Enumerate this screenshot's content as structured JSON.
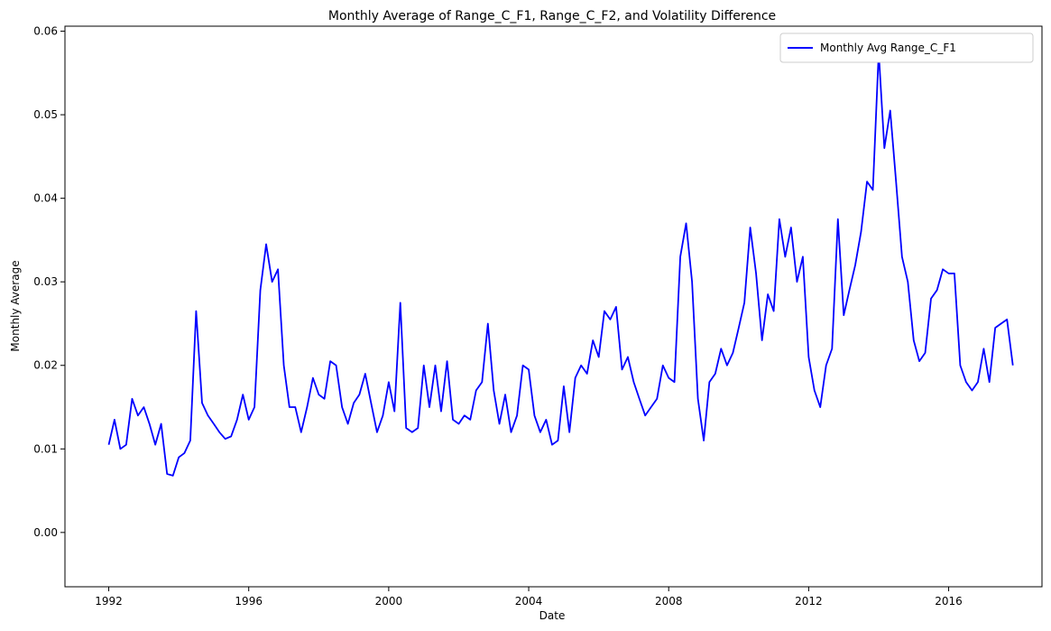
{
  "chart_data": {
    "type": "line",
    "title": "Monthly Average of Range_C_F1, Range_C_F2, and Volatility Difference",
    "xlabel": "Date",
    "ylabel": "Monthly Average",
    "xlim": [
      "1990-10-01",
      "2018-09-01"
    ],
    "ylim": [
      -0.0065,
      0.0606
    ],
    "x_ticks": [
      {
        "value": "1992-01-01",
        "label": "1992"
      },
      {
        "value": "1996-01-01",
        "label": "1996"
      },
      {
        "value": "2000-01-01",
        "label": "2000"
      },
      {
        "value": "2004-01-01",
        "label": "2004"
      },
      {
        "value": "2008-01-01",
        "label": "2008"
      },
      {
        "value": "2012-01-01",
        "label": "2012"
      },
      {
        "value": "2016-01-01",
        "label": "2016"
      }
    ],
    "y_ticks": [
      {
        "value": 0.0,
        "label": "0.00"
      },
      {
        "value": 0.01,
        "label": "0.01"
      },
      {
        "value": 0.02,
        "label": "0.02"
      },
      {
        "value": 0.03,
        "label": "0.03"
      },
      {
        "value": 0.04,
        "label": "0.04"
      },
      {
        "value": 0.05,
        "label": "0.05"
      },
      {
        "value": 0.06,
        "label": "0.06"
      }
    ],
    "grid": false,
    "legend_position": "top-right",
    "series": [
      {
        "name": "Monthly Avg Range_C_F1",
        "color": "#0000ff",
        "points": [
          [
            "1992-01",
            0.0105
          ],
          [
            "1992-03",
            0.0135
          ],
          [
            "1992-05",
            0.01
          ],
          [
            "1992-07",
            0.0105
          ],
          [
            "1992-09",
            0.016
          ],
          [
            "1992-11",
            0.014
          ],
          [
            "1993-01",
            0.015
          ],
          [
            "1993-03",
            0.013
          ],
          [
            "1993-05",
            0.0105
          ],
          [
            "1993-07",
            0.013
          ],
          [
            "1993-09",
            0.007
          ],
          [
            "1993-11",
            0.0068
          ],
          [
            "1994-01",
            0.009
          ],
          [
            "1994-03",
            0.0095
          ],
          [
            "1994-05",
            0.011
          ],
          [
            "1994-07",
            0.0265
          ],
          [
            "1994-09",
            0.0155
          ],
          [
            "1994-11",
            0.014
          ],
          [
            "1995-01",
            0.013
          ],
          [
            "1995-03",
            0.012
          ],
          [
            "1995-05",
            0.0112
          ],
          [
            "1995-07",
            0.0115
          ],
          [
            "1995-09",
            0.0135
          ],
          [
            "1995-11",
            0.0165
          ],
          [
            "1996-01",
            0.0135
          ],
          [
            "1996-03",
            0.015
          ],
          [
            "1996-05",
            0.029
          ],
          [
            "1996-07",
            0.0345
          ],
          [
            "1996-09",
            0.03
          ],
          [
            "1996-11",
            0.0315
          ],
          [
            "1997-01",
            0.02
          ],
          [
            "1997-03",
            0.015
          ],
          [
            "1997-05",
            0.015
          ],
          [
            "1997-07",
            0.012
          ],
          [
            "1997-09",
            0.015
          ],
          [
            "1997-11",
            0.0185
          ],
          [
            "1998-01",
            0.0165
          ],
          [
            "1998-03",
            0.016
          ],
          [
            "1998-05",
            0.0205
          ],
          [
            "1998-07",
            0.02
          ],
          [
            "1998-09",
            0.015
          ],
          [
            "1998-11",
            0.013
          ],
          [
            "1999-01",
            0.0155
          ],
          [
            "1999-03",
            0.0165
          ],
          [
            "1999-05",
            0.019
          ],
          [
            "1999-07",
            0.0155
          ],
          [
            "1999-09",
            0.012
          ],
          [
            "1999-11",
            0.014
          ],
          [
            "2000-01",
            0.018
          ],
          [
            "2000-03",
            0.0145
          ],
          [
            "2000-05",
            0.0275
          ],
          [
            "2000-07",
            0.0125
          ],
          [
            "2000-09",
            0.012
          ],
          [
            "2000-11",
            0.0125
          ],
          [
            "2001-01",
            0.02
          ],
          [
            "2001-03",
            0.015
          ],
          [
            "2001-05",
            0.02
          ],
          [
            "2001-07",
            0.0145
          ],
          [
            "2001-09",
            0.0205
          ],
          [
            "2001-11",
            0.0135
          ],
          [
            "2002-01",
            0.013
          ],
          [
            "2002-03",
            0.014
          ],
          [
            "2002-05",
            0.0135
          ],
          [
            "2002-07",
            0.017
          ],
          [
            "2002-09",
            0.018
          ],
          [
            "2002-11",
            0.025
          ],
          [
            "2003-01",
            0.017
          ],
          [
            "2003-03",
            0.013
          ],
          [
            "2003-05",
            0.0165
          ],
          [
            "2003-07",
            0.012
          ],
          [
            "2003-09",
            0.014
          ],
          [
            "2003-11",
            0.02
          ],
          [
            "2004-01",
            0.0195
          ],
          [
            "2004-03",
            0.014
          ],
          [
            "2004-05",
            0.012
          ],
          [
            "2004-07",
            0.0135
          ],
          [
            "2004-09",
            0.0105
          ],
          [
            "2004-11",
            0.011
          ],
          [
            "2005-01",
            0.0175
          ],
          [
            "2005-03",
            0.012
          ],
          [
            "2005-05",
            0.0185
          ],
          [
            "2005-07",
            0.02
          ],
          [
            "2005-09",
            0.019
          ],
          [
            "2005-11",
            0.023
          ],
          [
            "2006-01",
            0.021
          ],
          [
            "2006-03",
            0.0265
          ],
          [
            "2006-05",
            0.0255
          ],
          [
            "2006-07",
            0.027
          ],
          [
            "2006-09",
            0.0195
          ],
          [
            "2006-11",
            0.021
          ],
          [
            "2007-01",
            0.018
          ],
          [
            "2007-03",
            0.016
          ],
          [
            "2007-05",
            0.014
          ],
          [
            "2007-07",
            0.015
          ],
          [
            "2007-09",
            0.016
          ],
          [
            "2007-11",
            0.02
          ],
          [
            "2008-01",
            0.0185
          ],
          [
            "2008-03",
            0.018
          ],
          [
            "2008-05",
            0.033
          ],
          [
            "2008-07",
            0.037
          ],
          [
            "2008-09",
            0.03
          ],
          [
            "2008-11",
            0.016
          ],
          [
            "2009-01",
            0.011
          ],
          [
            "2009-03",
            0.018
          ],
          [
            "2009-05",
            0.019
          ],
          [
            "2009-07",
            0.022
          ],
          [
            "2009-09",
            0.02
          ],
          [
            "2009-11",
            0.0215
          ],
          [
            "2010-01",
            0.0245
          ],
          [
            "2010-03",
            0.0275
          ],
          [
            "2010-05",
            0.0365
          ],
          [
            "2010-07",
            0.031
          ],
          [
            "2010-09",
            0.023
          ],
          [
            "2010-11",
            0.0285
          ],
          [
            "2011-01",
            0.0265
          ],
          [
            "2011-03",
            0.0375
          ],
          [
            "2011-05",
            0.033
          ],
          [
            "2011-07",
            0.0365
          ],
          [
            "2011-09",
            0.03
          ],
          [
            "2011-11",
            0.033
          ],
          [
            "2012-01",
            0.021
          ],
          [
            "2012-03",
            0.017
          ],
          [
            "2012-05",
            0.015
          ],
          [
            "2012-07",
            0.02
          ],
          [
            "2012-09",
            0.022
          ],
          [
            "2012-11",
            0.0375
          ],
          [
            "2013-01",
            0.026
          ],
          [
            "2013-03",
            0.029
          ],
          [
            "2013-05",
            0.032
          ],
          [
            "2013-07",
            0.036
          ],
          [
            "2013-09",
            0.042
          ],
          [
            "2013-11",
            0.041
          ],
          [
            "2014-01",
            0.0575
          ],
          [
            "2014-03",
            0.046
          ],
          [
            "2014-05",
            0.0505
          ],
          [
            "2014-07",
            0.042
          ],
          [
            "2014-09",
            0.033
          ],
          [
            "2014-11",
            0.03
          ],
          [
            "2015-01",
            0.023
          ],
          [
            "2015-03",
            0.0205
          ],
          [
            "2015-05",
            0.0215
          ],
          [
            "2015-07",
            0.028
          ],
          [
            "2015-09",
            0.029
          ],
          [
            "2015-11",
            0.0315
          ],
          [
            "2016-01",
            0.031
          ],
          [
            "2016-03",
            0.031
          ],
          [
            "2016-05",
            0.02
          ],
          [
            "2016-07",
            0.018
          ],
          [
            "2016-09",
            0.017
          ],
          [
            "2016-11",
            0.018
          ],
          [
            "2017-01",
            0.022
          ],
          [
            "2017-03",
            0.018
          ],
          [
            "2017-05",
            0.0245
          ],
          [
            "2017-07",
            0.025
          ],
          [
            "2017-09",
            0.0255
          ],
          [
            "2017-11",
            0.02
          ]
        ]
      }
    ]
  }
}
